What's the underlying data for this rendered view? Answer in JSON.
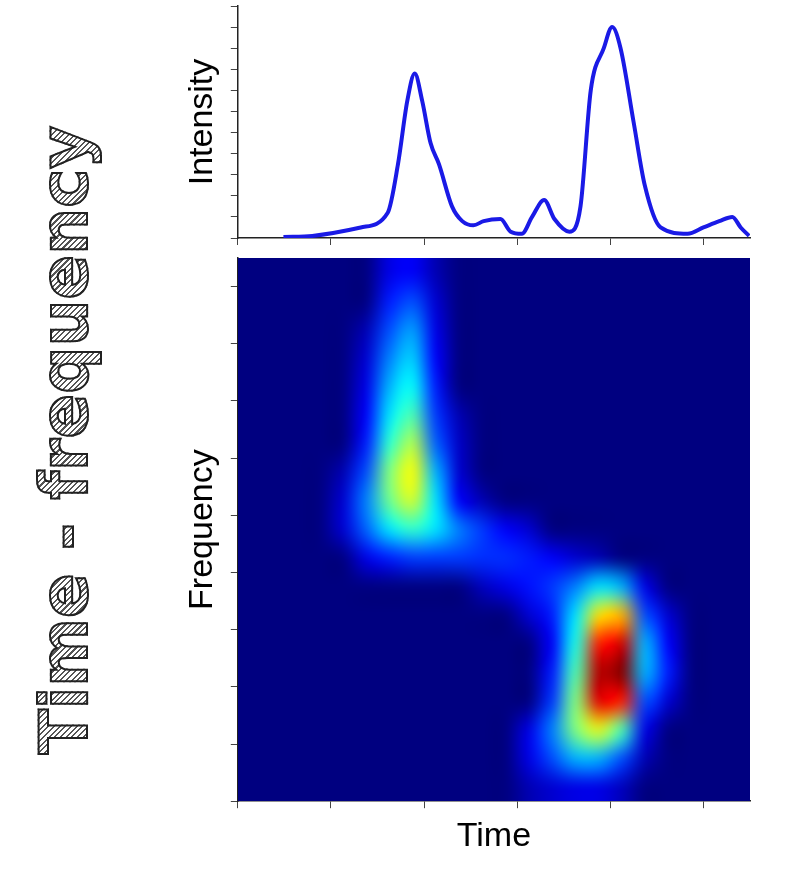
{
  "title": "Time - frequency",
  "chart_data": [
    {
      "type": "line",
      "y_label": "Intensity",
      "color": "#1a1ae6",
      "grid": false,
      "tick_labels": false,
      "x": [
        0.49,
        0.8,
        1.32,
        1.61,
        1.72,
        1.82,
        1.9,
        1.98,
        2.07,
        2.16,
        2.3,
        2.41,
        2.53,
        2.64,
        2.82,
        2.93,
        3.05,
        3.16,
        3.29,
        3.4,
        3.56,
        3.68,
        3.79,
        3.93,
        4.02,
        4.11,
        4.25,
        4.37,
        4.54,
        4.83,
        5.0,
        5.17,
        5.31,
        5.4,
        5.49
      ],
      "values": [
        0.05,
        0.1,
        0.5,
        1.2,
        3.5,
        6.5,
        7.8,
        6.5,
        4.5,
        3.5,
        1.5,
        0.8,
        0.6,
        0.8,
        0.9,
        0.3,
        0.2,
        1.0,
        1.8,
        0.9,
        0.3,
        1.5,
        7.0,
        9.0,
        10.0,
        9.0,
        5.5,
        2.5,
        0.5,
        0.2,
        0.5,
        0.8,
        1.0,
        0.5,
        0.1
      ],
      "xlim": [
        0,
        5.5
      ],
      "xticks": [
        0,
        1,
        2,
        3,
        4,
        5
      ],
      "ylim": [
        0,
        11
      ],
      "yticks": [
        0,
        1,
        2,
        3,
        4,
        5,
        6,
        7,
        8,
        9,
        10,
        11
      ]
    },
    {
      "type": "heatmap",
      "x_label": "Time",
      "y_label": "Frequency",
      "grid": false,
      "tick_labels": false,
      "xlim": [
        0,
        5.5
      ],
      "xticks": [
        0,
        1,
        2,
        3,
        4,
        5
      ],
      "ylim": [
        0,
        9.5
      ],
      "yticks": [
        0,
        1,
        2,
        3,
        4,
        5,
        6,
        7,
        8,
        9
      ],
      "zlim": [
        0,
        1
      ],
      "cells": [
        [
          0,
          0,
          0,
          0,
          0,
          0,
          0.1,
          0.12,
          0.05,
          0,
          0,
          0,
          0,
          0,
          0,
          0,
          0,
          0,
          0,
          0,
          0,
          0
        ],
        [
          0,
          0,
          0,
          0,
          0,
          0,
          0.15,
          0.2,
          0.08,
          0,
          0,
          0,
          0,
          0,
          0,
          0,
          0,
          0,
          0,
          0,
          0,
          0
        ],
        [
          0,
          0,
          0,
          0,
          0,
          0.05,
          0.2,
          0.28,
          0.1,
          0,
          0,
          0,
          0,
          0,
          0,
          0,
          0,
          0,
          0,
          0,
          0,
          0
        ],
        [
          0,
          0,
          0,
          0,
          0,
          0.08,
          0.25,
          0.33,
          0.12,
          0,
          0,
          0,
          0,
          0,
          0,
          0,
          0,
          0,
          0,
          0,
          0,
          0
        ],
        [
          0,
          0,
          0,
          0,
          0,
          0.1,
          0.3,
          0.38,
          0.15,
          0,
          0,
          0,
          0,
          0,
          0,
          0,
          0,
          0,
          0,
          0,
          0,
          0
        ],
        [
          0,
          0,
          0,
          0,
          0,
          0.12,
          0.35,
          0.45,
          0.18,
          0.05,
          0,
          0,
          0,
          0,
          0,
          0,
          0,
          0,
          0,
          0,
          0,
          0
        ],
        [
          0,
          0,
          0,
          0,
          0,
          0.15,
          0.42,
          0.55,
          0.22,
          0.07,
          0,
          0,
          0,
          0,
          0,
          0,
          0,
          0,
          0,
          0,
          0,
          0
        ],
        [
          0,
          0,
          0,
          0,
          0.05,
          0.2,
          0.5,
          0.62,
          0.3,
          0.08,
          0,
          0,
          0,
          0,
          0,
          0,
          0,
          0,
          0,
          0,
          0,
          0
        ],
        [
          0,
          0,
          0,
          0,
          0.08,
          0.25,
          0.48,
          0.58,
          0.35,
          0.12,
          0.05,
          0,
          0,
          0,
          0,
          0,
          0,
          0,
          0,
          0,
          0,
          0
        ],
        [
          0,
          0,
          0,
          0,
          0.08,
          0.22,
          0.35,
          0.42,
          0.35,
          0.25,
          0.18,
          0.12,
          0.08,
          0,
          0,
          0,
          0,
          0,
          0,
          0,
          0,
          0
        ],
        [
          0,
          0,
          0,
          0,
          0,
          0.1,
          0.15,
          0.18,
          0.18,
          0.18,
          0.17,
          0.17,
          0.15,
          0.12,
          0.08,
          0.05,
          0,
          0,
          0,
          0,
          0,
          0
        ],
        [
          0,
          0,
          0,
          0,
          0,
          0,
          0,
          0,
          0,
          0,
          0.06,
          0.1,
          0.14,
          0.18,
          0.25,
          0.35,
          0.3,
          0.1,
          0,
          0,
          0,
          0
        ],
        [
          0,
          0,
          0,
          0,
          0,
          0,
          0,
          0,
          0,
          0,
          0,
          0,
          0.08,
          0.15,
          0.35,
          0.65,
          0.7,
          0.2,
          0.08,
          0,
          0,
          0
        ],
        [
          0,
          0,
          0,
          0,
          0,
          0,
          0,
          0,
          0,
          0,
          0,
          0,
          0,
          0.12,
          0.4,
          0.85,
          0.92,
          0.3,
          0.12,
          0,
          0,
          0
        ],
        [
          0,
          0,
          0,
          0,
          0,
          0,
          0,
          0,
          0,
          0,
          0,
          0,
          0,
          0.15,
          0.45,
          0.95,
          1.0,
          0.3,
          0.15,
          0,
          0,
          0
        ],
        [
          0,
          0,
          0,
          0,
          0,
          0,
          0,
          0,
          0,
          0,
          0,
          0,
          0,
          0.18,
          0.5,
          0.9,
          0.85,
          0.2,
          0.08,
          0,
          0,
          0
        ],
        [
          0,
          0,
          0,
          0,
          0,
          0,
          0,
          0,
          0,
          0,
          0,
          0,
          0.1,
          0.25,
          0.5,
          0.6,
          0.45,
          0.1,
          0,
          0,
          0,
          0
        ],
        [
          0,
          0,
          0,
          0,
          0,
          0,
          0,
          0,
          0,
          0,
          0,
          0,
          0.1,
          0.2,
          0.3,
          0.3,
          0.2,
          0.05,
          0,
          0,
          0,
          0
        ],
        [
          0,
          0,
          0,
          0,
          0,
          0,
          0,
          0,
          0,
          0,
          0,
          0,
          0.05,
          0.08,
          0.1,
          0.1,
          0.06,
          0,
          0,
          0,
          0,
          0
        ]
      ]
    }
  ]
}
